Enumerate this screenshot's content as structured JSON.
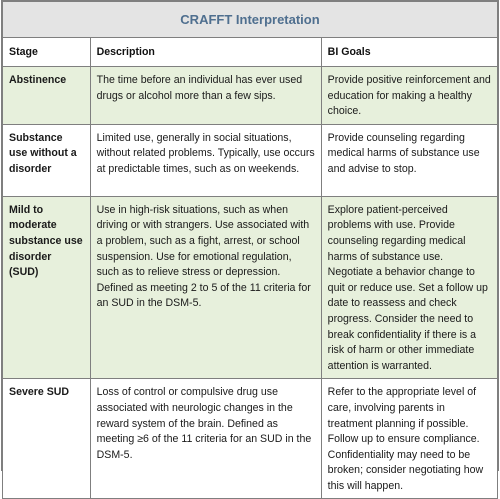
{
  "title": "CRAFFT Interpretation",
  "headers": {
    "stage": "Stage",
    "description": "Description",
    "goals": "BI Goals"
  },
  "rows": [
    {
      "stage": "Abstinence",
      "description": "The time before an individual has ever used drugs or alcohol more than a few sips.",
      "goals": "Provide positive reinforcement and education for making a healthy choice."
    },
    {
      "stage": "Substance use without a disorder",
      "description": "Limited use, generally in social situations, without related problems. Typically, use occurs at predictable times, such as on weekends.",
      "goals": "Provide counseling regarding medical harms of substance use and advise to stop."
    },
    {
      "stage": "Mild to moderate substance use disorder (SUD)",
      "description": "Use in high-risk situations, such as when driving or with strangers. Use associated with a problem, such as a fight, arrest, or school suspension. Use for emotional regulation, such as to relieve stress or depression. Defined as meeting 2 to 5 of the 11 criteria for an SUD in the DSM-5.",
      "goals": "Explore patient-perceived problems with use. Provide counseling regarding medical harms of substance use. Negotiate a behavior change to quit or reduce use. Set a follow up date to reassess and check progress. Consider the need to break confidentiality if there is a risk of harm or other immediate attention is warranted."
    },
    {
      "stage": "Severe SUD",
      "description": "Loss of control or compulsive drug use associated with neurologic changes in the reward system of the brain. Defined as meeting ≥6 of the 11 criteria for an SUD in the DSM-5.",
      "goals": "Refer to the appropriate level of care, involving parents in treatment planning if possible. Follow up to ensure compliance. Confidentiality may need to be broken; consider negotiating how this will happen."
    }
  ]
}
